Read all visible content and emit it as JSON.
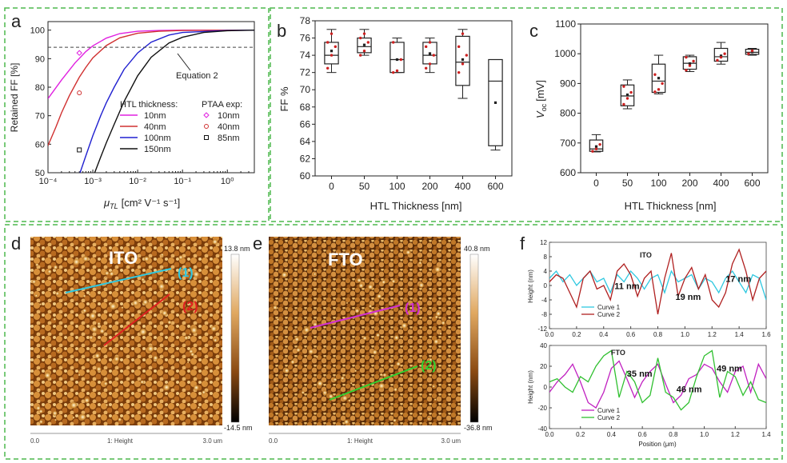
{
  "colors": {
    "frame": "#4db84d",
    "magenta": "#e020e0",
    "red": "#d03030",
    "blue": "#2020d0",
    "black": "#111111",
    "cyan": "#30c8e0",
    "green": "#30c030",
    "darkred": "#b02020",
    "purple": "#c020c0",
    "dotred": "#cc2020"
  },
  "panels": {
    "a": "a",
    "b": "b",
    "c": "c",
    "d": "d",
    "e": "e",
    "f": "f"
  },
  "chart_data": [
    {
      "id": "a",
      "type": "line",
      "ylabel": "Retained FF [%]",
      "xlabel_main": "μ",
      "xlabel_sub": "TL",
      "xlabel_unit": "[cm² V⁻¹ s⁻¹]",
      "xscale": "log",
      "xlim": [
        0.0001,
        4
      ],
      "ylim": [
        50,
        103
      ],
      "xticks": [
        "10⁻⁴",
        "10⁻³",
        "10⁻²",
        "10⁻¹",
        "10⁰"
      ],
      "xtick_values": [
        0.0001,
        0.001,
        0.01,
        0.1,
        1
      ],
      "yticks": [
        50,
        60,
        70,
        80,
        90,
        100
      ],
      "reference": {
        "y": 94,
        "label": "Equation 2"
      },
      "legend_title_lines": "HTL thickness:",
      "legend_title_points": "PTAA exp:",
      "series": [
        {
          "name": "10nm",
          "color": "magenta",
          "x": [
            0.0001,
            0.0002,
            0.0004,
            0.0007,
            0.001,
            0.002,
            0.004,
            0.01,
            0.03,
            0.1,
            1,
            4
          ],
          "y": [
            76,
            82.5,
            88.5,
            92.5,
            94.5,
            97.2,
            98.8,
            99.6,
            99.9,
            100,
            100,
            100
          ]
        },
        {
          "name": "40nm",
          "color": "red",
          "x": [
            0.0001,
            0.00015,
            0.0002,
            0.0003,
            0.0005,
            0.0007,
            0.001,
            0.002,
            0.004,
            0.01,
            0.03,
            0.1,
            1,
            4
          ],
          "y": [
            59.5,
            66,
            71,
            77,
            83.5,
            87,
            90.3,
            94.6,
            97.3,
            98.9,
            99.6,
            99.9,
            100,
            100
          ]
        },
        {
          "name": "100nm",
          "color": "blue",
          "x": [
            0.00052,
            0.0007,
            0.001,
            0.0015,
            0.002,
            0.003,
            0.005,
            0.01,
            0.02,
            0.05,
            0.1,
            1,
            4
          ],
          "y": [
            50,
            56,
            63,
            70,
            74.5,
            80,
            86.3,
            92,
            95.8,
            98.3,
            99.2,
            99.9,
            100
          ]
        },
        {
          "name": "150nm",
          "color": "black",
          "x": [
            0.0011,
            0.0015,
            0.002,
            0.003,
            0.005,
            0.01,
            0.02,
            0.05,
            0.1,
            0.3,
            1,
            4
          ],
          "y": [
            50,
            55.5,
            60.5,
            67,
            75,
            84,
            90.5,
            95.5,
            97.5,
            99.2,
            99.8,
            100
          ]
        }
      ],
      "points": [
        {
          "name": "10nm",
          "color": "magenta",
          "shape": "diamond",
          "x": 0.0005,
          "y": 92
        },
        {
          "name": "40nm",
          "color": "red",
          "shape": "circle",
          "x": 0.0005,
          "y": 78
        },
        {
          "name": "85nm",
          "color": "black",
          "shape": "square",
          "x": 0.0005,
          "y": 58
        }
      ]
    },
    {
      "id": "b",
      "type": "box",
      "ylabel": "FF %",
      "xlabel": "HTL Thickness [nm]",
      "ylim": [
        60,
        78
      ],
      "yticks": [
        60,
        62,
        64,
        66,
        68,
        70,
        72,
        74,
        76,
        78
      ],
      "categories": [
        "0",
        "50",
        "100",
        "200",
        "400",
        "600"
      ],
      "boxes": [
        {
          "min": 72,
          "q1": 73,
          "median": 74,
          "q3": 75.5,
          "max": 77,
          "mean": 74.5,
          "points": [
            72.5,
            74,
            75,
            75.5,
            76.5
          ]
        },
        {
          "min": 74,
          "q1": 74.3,
          "median": 75,
          "q3": 76,
          "max": 77,
          "mean": 75.2,
          "points": [
            74,
            74.5,
            75.5,
            76,
            76.5
          ]
        },
        {
          "min": 72,
          "q1": 72,
          "median": 73.5,
          "q3": 75.5,
          "max": 76,
          "mean": 73.5,
          "points": [
            72,
            72.2,
            73.5,
            75.5
          ]
        },
        {
          "min": 72,
          "q1": 73,
          "median": 74,
          "q3": 75.5,
          "max": 76,
          "mean": 74.2,
          "points": [
            72.5,
            73,
            74,
            75,
            75.5
          ]
        },
        {
          "min": 69,
          "q1": 70.5,
          "median": 73.2,
          "q3": 76.2,
          "max": 77,
          "mean": 73.5,
          "points": [
            72,
            73,
            74,
            75,
            76.5
          ]
        },
        {
          "min": 63,
          "q1": 63.5,
          "median": 71,
          "q3": 73.5,
          "max": 73.5,
          "mean": 68.5,
          "points": []
        }
      ]
    },
    {
      "id": "c",
      "type": "box",
      "ylabel_main": "V",
      "ylabel_sub": "oc",
      "ylabel_unit": "[mV]",
      "xlabel": "HTL Thickness [nm]",
      "ylim": [
        600,
        1100
      ],
      "yticks": [
        600,
        700,
        800,
        900,
        1000,
        1100
      ],
      "categories": [
        "0",
        "50",
        "100",
        "200",
        "400",
        "600"
      ],
      "boxes": [
        {
          "min": 670,
          "q1": 672,
          "median": 680,
          "q3": 710,
          "max": 728,
          "mean": 688,
          "points": [
            672,
            680,
            695
          ]
        },
        {
          "min": 815,
          "q1": 825,
          "median": 858,
          "q3": 895,
          "max": 912,
          "mean": 862,
          "points": [
            830,
            850,
            870,
            890
          ]
        },
        {
          "min": 865,
          "q1": 870,
          "median": 908,
          "q3": 965,
          "max": 995,
          "mean": 918,
          "points": [
            872,
            880,
            900,
            930
          ]
        },
        {
          "min": 940,
          "q1": 948,
          "median": 968,
          "q3": 990,
          "max": 995,
          "mean": 967,
          "points": [
            945,
            960,
            975,
            988
          ]
        },
        {
          "min": 965,
          "q1": 975,
          "median": 990,
          "q3": 1018,
          "max": 1038,
          "mean": 993,
          "points": [
            978,
            988,
            1000
          ]
        },
        {
          "min": 995,
          "q1": 998,
          "median": 1005,
          "q3": 1015,
          "max": 1018,
          "mean": 1006,
          "points": [
            1000,
            1010
          ]
        }
      ]
    },
    {
      "id": "f-ito",
      "type": "line",
      "title": "ITO",
      "ylabel": "Height (nm)",
      "xlim": [
        0,
        1.6
      ],
      "ylim": [
        -12,
        12
      ],
      "xticks": [
        "0.0",
        "0.2",
        "0.4",
        "0.6",
        "0.8",
        "1.0",
        "1.2",
        "1.4",
        "1.6"
      ],
      "yticks": [
        12,
        8,
        4,
        0,
        -4,
        -8,
        -12
      ],
      "series": [
        {
          "name": "Curve 1",
          "color": "cyan",
          "x": [
            0,
            0.05,
            0.1,
            0.15,
            0.2,
            0.25,
            0.3,
            0.35,
            0.4,
            0.45,
            0.5,
            0.55,
            0.6,
            0.65,
            0.7,
            0.75,
            0.8,
            0.85,
            0.9,
            0.95,
            1.0,
            1.05,
            1.1,
            1.15,
            1.2,
            1.25,
            1.3,
            1.35,
            1.4,
            1.45,
            1.5,
            1.55,
            1.6
          ],
          "y": [
            2,
            4,
            1,
            3,
            0,
            2,
            4,
            1,
            2,
            -2,
            3,
            1,
            4,
            2,
            -1,
            2,
            3,
            -2,
            4,
            1,
            2,
            3,
            -1,
            2,
            1,
            -2,
            2,
            4,
            1,
            -2,
            3,
            2,
            -4
          ]
        },
        {
          "name": "Curve 2",
          "color": "darkred",
          "x": [
            0,
            0.05,
            0.1,
            0.15,
            0.2,
            0.25,
            0.3,
            0.35,
            0.4,
            0.45,
            0.5,
            0.55,
            0.6,
            0.65,
            0.7,
            0.75,
            0.8,
            0.85,
            0.9,
            0.95,
            1.0,
            1.05,
            1.1,
            1.15,
            1.2,
            1.25,
            1.3,
            1.35,
            1.4,
            1.45,
            1.5,
            1.55,
            1.6
          ],
          "y": [
            1,
            3,
            2,
            -2,
            -6,
            2,
            4,
            -1,
            0,
            -4,
            4,
            6,
            3,
            -3,
            2,
            4,
            -8,
            2,
            9,
            -3,
            2,
            5,
            -1,
            3,
            -4,
            -6,
            -2,
            6,
            10,
            4,
            -4,
            2,
            4
          ]
        }
      ],
      "annotations": [
        {
          "text": "11 nm",
          "x": 0.48,
          "y": -1
        },
        {
          "text": "19 nm",
          "x": 0.93,
          "y": -4
        },
        {
          "text": "17 nm",
          "x": 1.3,
          "y": 1
        }
      ]
    },
    {
      "id": "f-fto",
      "type": "line",
      "title": "FTO",
      "ylabel": "Height (nm)",
      "xlabel": "Position (μm)",
      "xlim": [
        0,
        1.4
      ],
      "ylim": [
        -40,
        40
      ],
      "xticks": [
        "0.0",
        "0.2",
        "0.4",
        "0.6",
        "0.8",
        "1.0",
        "1.2",
        "1.4"
      ],
      "yticks": [
        40,
        20,
        0,
        -20,
        -40
      ],
      "series": [
        {
          "name": "Curve 1",
          "color": "purple",
          "x": [
            0,
            0.05,
            0.1,
            0.15,
            0.2,
            0.25,
            0.3,
            0.35,
            0.4,
            0.45,
            0.5,
            0.55,
            0.6,
            0.65,
            0.7,
            0.75,
            0.8,
            0.85,
            0.9,
            0.95,
            1.0,
            1.05,
            1.1,
            1.15,
            1.2,
            1.25,
            1.3,
            1.35,
            1.4
          ],
          "y": [
            -5,
            5,
            12,
            22,
            5,
            -15,
            -20,
            -5,
            18,
            25,
            8,
            -10,
            5,
            15,
            22,
            3,
            -15,
            -8,
            8,
            12,
            22,
            18,
            5,
            -5,
            15,
            20,
            -5,
            22,
            8
          ]
        },
        {
          "name": "Curve 2",
          "color": "green",
          "x": [
            0,
            0.05,
            0.1,
            0.15,
            0.2,
            0.25,
            0.3,
            0.35,
            0.4,
            0.45,
            0.5,
            0.55,
            0.6,
            0.65,
            0.7,
            0.75,
            0.8,
            0.85,
            0.9,
            0.95,
            1.0,
            1.05,
            1.1,
            1.15,
            1.2,
            1.25,
            1.3,
            1.35,
            1.4
          ],
          "y": [
            5,
            8,
            0,
            -5,
            10,
            5,
            20,
            30,
            35,
            -10,
            15,
            5,
            -15,
            -8,
            28,
            -5,
            -10,
            -22,
            -15,
            10,
            30,
            35,
            -10,
            15,
            10,
            -8,
            5,
            -12,
            -15
          ]
        }
      ],
      "annotations": [
        {
          "text": "35 nm",
          "x": 0.5,
          "y": 10
        },
        {
          "text": "46 nm",
          "x": 0.82,
          "y": -5
        },
        {
          "text": "49 nm",
          "x": 1.08,
          "y": 15
        }
      ]
    }
  ],
  "afm": {
    "d": {
      "label": "ITO",
      "scale_max": "13.8 nm",
      "scale_min": "-14.5 nm",
      "line1": "(1)",
      "line2": "(2)",
      "axis_start": "0.0",
      "axis_mid": "1: Height",
      "axis_end": "3.0 um"
    },
    "e": {
      "label": "FTO",
      "scale_max": "40.8 nm",
      "scale_min": "-36.8 nm",
      "line1": "(1)",
      "line2": "(2)",
      "axis_start": "0.0",
      "axis_mid": "1: Height",
      "axis_end": "3.0 um"
    }
  }
}
